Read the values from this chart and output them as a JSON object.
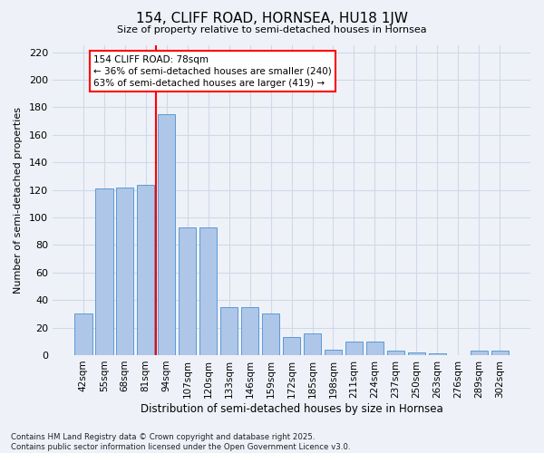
{
  "title": "154, CLIFF ROAD, HORNSEA, HU18 1JW",
  "subtitle": "Size of property relative to semi-detached houses in Hornsea",
  "xlabel": "Distribution of semi-detached houses by size in Hornsea",
  "ylabel": "Number of semi-detached properties",
  "categories": [
    "42sqm",
    "55sqm",
    "68sqm",
    "81sqm",
    "94sqm",
    "107sqm",
    "120sqm",
    "133sqm",
    "146sqm",
    "159sqm",
    "172sqm",
    "185sqm",
    "198sqm",
    "211sqm",
    "224sqm",
    "237sqm",
    "250sqm",
    "263sqm",
    "276sqm",
    "289sqm",
    "302sqm"
  ],
  "values": [
    30,
    121,
    122,
    124,
    175,
    93,
    93,
    35,
    35,
    30,
    13,
    16,
    4,
    10,
    10,
    3,
    2,
    1,
    0,
    3,
    3
  ],
  "bar_color": "#aec6e8",
  "bar_edge_color": "#5b9bd5",
  "grid_color": "#d0d8e8",
  "background_color": "#eef2f8",
  "red_line_index": 3,
  "annotation_line1": "154 CLIFF ROAD: 78sqm",
  "annotation_line2": "← 36% of semi-detached houses are smaller (240)",
  "annotation_line3": "63% of semi-detached houses are larger (419) →",
  "footer_line1": "Contains HM Land Registry data © Crown copyright and database right 2025.",
  "footer_line2": "Contains public sector information licensed under the Open Government Licence v3.0.",
  "ylim": [
    0,
    225
  ],
  "yticks": [
    0,
    20,
    40,
    60,
    80,
    100,
    120,
    140,
    160,
    180,
    200,
    220
  ]
}
